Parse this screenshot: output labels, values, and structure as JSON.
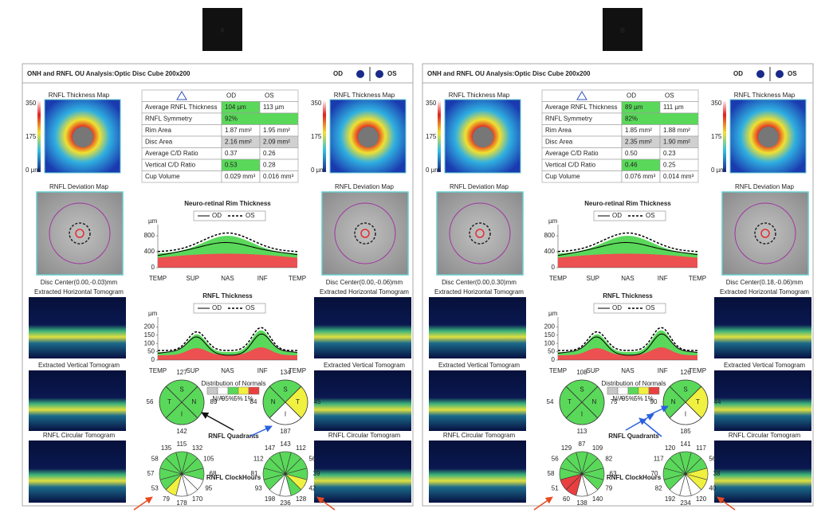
{
  "panels": [
    {
      "label": "A",
      "title": "ONH and RNFL OU Analysis:Optic Disc Cube 200x200",
      "od": "OD",
      "os": "OS",
      "left": {
        "map_title": "RNFL Thickness Map",
        "scale": [
          "350",
          "175",
          "0 µm"
        ],
        "deviation_title": "RNFL Deviation Map",
        "disc_center": "Disc Center(0.00,-0.03)mm",
        "horizontal": "Extracted Horizontal Tomogram",
        "vertical": "Extracted Vertical Tomogram",
        "circular": "RNFL Circular Tomogram"
      },
      "right": {
        "map_title": "RNFL Thickness Map",
        "scale": [
          "350",
          "175",
          "0 µm"
        ],
        "deviation_title": "RNFL Deviation Map",
        "disc_center": "Disc Center(0.00,-0.06)mm",
        "horizontal": "Extracted Horizontal Tomogram",
        "vertical": "Extracted Vertical Tomogram",
        "circular": "RNFL Circular Tomogram"
      },
      "table": {
        "header": [
          "OD",
          "OS"
        ],
        "rows": [
          [
            "Average RNFL Thickness",
            "104 µm",
            "113 µm"
          ],
          [
            "RNFL Symmetry",
            "92%"
          ],
          [
            "Rim Area",
            "1.87 mm²",
            "1.95 mm²"
          ],
          [
            "Disc Area",
            "2.16 mm²",
            "2.09 mm²"
          ],
          [
            "Average C/D Ratio",
            "0.37",
            "0.26"
          ],
          [
            "Vertical C/D Ratio",
            "0.53",
            "0.28"
          ],
          [
            "Cup Volume",
            "0.029 mm³",
            "0.016 mm³"
          ]
        ],
        "colors": [
          [
            "#5ad85a",
            "#ffffff"
          ],
          [
            "#5ad85a"
          ],
          [
            "#ffffff",
            "#ffffff"
          ],
          [
            "#d0d0d0",
            "#d0d0d0"
          ],
          [
            "#ffffff",
            "#ffffff"
          ],
          [
            "#5ad85a",
            "#ffffff"
          ],
          [
            "#ffffff",
            "#ffffff"
          ]
        ]
      },
      "rim": {
        "title": "Neuro-retinal Rim Thickness",
        "legend": [
          "OD",
          "OS"
        ],
        "unit": "µm",
        "categories": [
          "TEMP",
          "SUP",
          "NAS",
          "INF",
          "TEMP"
        ],
        "ylim": [
          0,
          1000
        ],
        "yticks": [
          0,
          400,
          800
        ]
      },
      "rnfl": {
        "title": "RNFL Thickness",
        "legend": [
          "OD",
          "OS"
        ],
        "unit": "µm",
        "categories": [
          "TEMP",
          "SUP",
          "NAS",
          "INF",
          "TEMP"
        ],
        "ylim": [
          0,
          240
        ],
        "yticks": [
          0,
          50,
          100,
          150,
          200
        ]
      },
      "normals": {
        "title": "Distribution of Normals",
        "labels": [
          "N/A",
          "95%",
          "5%",
          "1%"
        ],
        "colors": [
          "#c8c8c8",
          "#ffffff",
          "#5ad85a",
          "#f0f040",
          "#e84040"
        ]
      },
      "quadrants": {
        "caption": "RNFL Quadrants",
        "od": {
          "letters": [
            "S",
            "T",
            "N",
            "I"
          ],
          "values": [
            127,
            56,
            89,
            142
          ],
          "colors": [
            "#5ad85a",
            "#5ad85a",
            "#5ad85a",
            "#5ad85a"
          ]
        },
        "os": {
          "letters": [
            "S",
            "N",
            "T",
            "I"
          ],
          "values": [
            134,
            84,
            45,
            187
          ],
          "colors": [
            "#5ad85a",
            "#5ad85a",
            "#f0f040",
            "#ffffff"
          ]
        }
      },
      "clock": {
        "caption": "RNFL ClockHours",
        "od": {
          "values": [
            135,
            115,
            132,
            58,
            105,
            57,
            68,
            53,
            95,
            79,
            178,
            170
          ],
          "colors": [
            "#5ad85a",
            "#5ad85a",
            "#5ad85a",
            "#5ad85a",
            "#5ad85a",
            "#5ad85a",
            "#5ad85a",
            "#5ad85a",
            "#ffffff",
            "#f0f040",
            "#ffffff",
            "#ffffff"
          ]
        },
        "os": {
          "values": [
            147,
            143,
            112,
            112,
            56,
            81,
            39,
            93,
            42,
            198,
            236,
            128
          ],
          "colors": [
            "#5ad85a",
            "#5ad85a",
            "#5ad85a",
            "#5ad85a",
            "#5ad85a",
            "#5ad85a",
            "#5ad85a",
            "#5ad85a",
            "#f0f040",
            "#ffffff",
            "#ffffff",
            "#5ad85a"
          ]
        }
      }
    },
    {
      "label": "B",
      "title": "ONH and RNFL OU Analysis:Optic Disc Cube 200x200",
      "od": "OD",
      "os": "OS",
      "left": {
        "map_title": "RNFL Thickness Map",
        "scale": [
          "350",
          "175",
          "0 µm"
        ],
        "deviation_title": "RNFL Deviation Map",
        "disc_center": "Disc Center(0.00,0.30)mm",
        "horizontal": "Extracted Horizontal Tomogram",
        "vertical": "Extracted Vertical Tomogram",
        "circular": "RNFL Circular Tomogram"
      },
      "right": {
        "map_title": "RNFL Thickness Map",
        "scale": [
          "350",
          "175",
          "0 µm"
        ],
        "deviation_title": "RNFL Deviation Map",
        "disc_center": "Disc Center(0.18,-0.06)mm",
        "horizontal": "Extracted Horizontal Tomogram",
        "vertical": "Extracted Vertical Tomogram",
        "circular": "RNFL Circular Tomogram"
      },
      "table": {
        "header": [
          "OD",
          "OS"
        ],
        "rows": [
          [
            "Average RNFL Thickness",
            "89 µm",
            "111 µm"
          ],
          [
            "RNFL Symmetry",
            "82%"
          ],
          [
            "Rim Area",
            "1.85 mm²",
            "1.88 mm²"
          ],
          [
            "Disc Area",
            "2.35 mm²",
            "1.90 mm²"
          ],
          [
            "Average C/D Ratio",
            "0.50",
            "0.23"
          ],
          [
            "Vertical C/D Ratio",
            "0.46",
            "0.25"
          ],
          [
            "Cup Volume",
            "0.076 mm³",
            "0.014 mm³"
          ]
        ],
        "colors": [
          [
            "#5ad85a",
            "#ffffff"
          ],
          [
            "#5ad85a"
          ],
          [
            "#ffffff",
            "#ffffff"
          ],
          [
            "#d0d0d0",
            "#d0d0d0"
          ],
          [
            "#ffffff",
            "#ffffff"
          ],
          [
            "#5ad85a",
            "#ffffff"
          ],
          [
            "#ffffff",
            "#ffffff"
          ]
        ]
      },
      "rim": {
        "title": "Neuro-retinal Rim Thickness",
        "legend": [
          "OD",
          "OS"
        ],
        "unit": "µm",
        "categories": [
          "TEMP",
          "SUP",
          "NAS",
          "INF",
          "TEMP"
        ],
        "ylim": [
          0,
          1000
        ],
        "yticks": [
          0,
          400,
          800
        ]
      },
      "rnfl": {
        "title": "RNFL Thickness",
        "legend": [
          "OD",
          "OS"
        ],
        "unit": "µm",
        "categories": [
          "TEMP",
          "SUP",
          "NAS",
          "INF",
          "TEMP"
        ],
        "ylim": [
          0,
          240
        ],
        "yticks": [
          0,
          50,
          100,
          150,
          200
        ]
      },
      "normals": {
        "title": "Distribution of Normals",
        "labels": [
          "N/A",
          "95%",
          "5%",
          "1%"
        ],
        "colors": [
          "#c8c8c8",
          "#ffffff",
          "#5ad85a",
          "#f0f040",
          "#e84040"
        ]
      },
      "quadrants": {
        "caption": "RNFL Quadrants",
        "od": {
          "letters": [
            "S",
            "T",
            "N",
            "I"
          ],
          "values": [
            108,
            54,
            75,
            113
          ],
          "colors": [
            "#5ad85a",
            "#5ad85a",
            "#5ad85a",
            "#5ad85a"
          ]
        },
        "os": {
          "letters": [
            "S",
            "N",
            "T",
            "I"
          ],
          "values": [
            126,
            90,
            44,
            185
          ],
          "colors": [
            "#5ad85a",
            "#5ad85a",
            "#f0f040",
            "#ffffff"
          ]
        }
      },
      "clock": {
        "caption": "RNFL ClockHours",
        "od": {
          "values": [
            129,
            87,
            109,
            56,
            82,
            58,
            63,
            51,
            79,
            60,
            138,
            140
          ],
          "colors": [
            "#5ad85a",
            "#5ad85a",
            "#5ad85a",
            "#5ad85a",
            "#5ad85a",
            "#5ad85a",
            "#5ad85a",
            "#e84040",
            "#5ad85a",
            "#e84040",
            "#ffffff",
            "#ffffff"
          ]
        },
        "os": {
          "values": [
            120,
            141,
            117,
            117,
            56,
            70,
            38,
            82,
            40,
            192,
            234,
            120
          ],
          "colors": [
            "#5ad85a",
            "#5ad85a",
            "#5ad85a",
            "#5ad85a",
            "#5ad85a",
            "#5ad85a",
            "#f0f040",
            "#5ad85a",
            "#f0f040",
            "#ffffff",
            "#ffffff",
            "#ffffff"
          ]
        }
      }
    }
  ]
}
